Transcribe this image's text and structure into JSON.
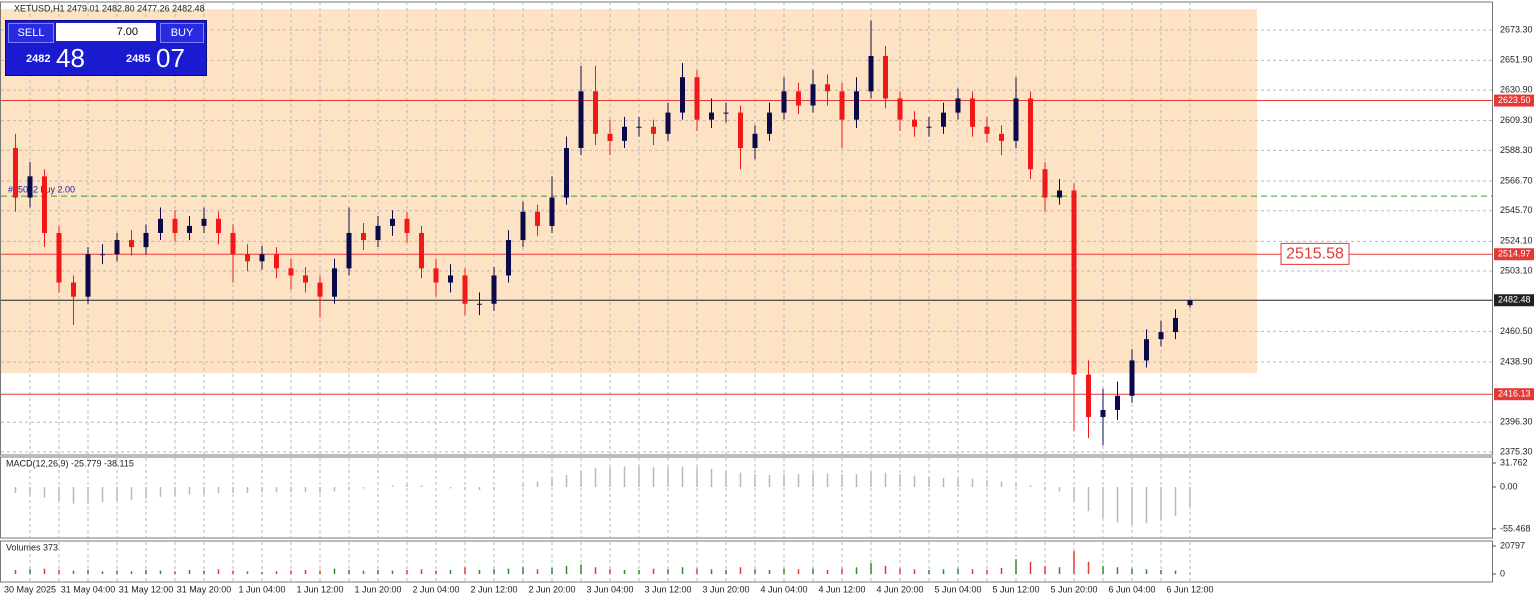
{
  "trade_panel": {
    "sell": "SELL",
    "buy": "BUY",
    "lots": "7.00",
    "bid_big": "2482",
    "bid_small": "48",
    "ask_big": "2485",
    "ask_small": "07"
  },
  "chart_data": [
    {
      "type": "candlestick",
      "title": "XETUSD,H1  2479.01 2482.80 2477.26 2482.48",
      "categories": [
        null,
        "30 May 2025",
        null,
        null,
        null,
        "31 May 04:00",
        null,
        null,
        null,
        "31 May 12:00",
        null,
        null,
        null,
        "31 May 20:00",
        null,
        null,
        null,
        "1 Jun 04:00",
        null,
        null,
        null,
        "1 Jun 12:00",
        null,
        null,
        null,
        "1 Jun 20:00",
        null,
        null,
        null,
        "2 Jun 04:00",
        null,
        null,
        null,
        "2 Jun 12:00",
        null,
        null,
        null,
        "2 Jun 20:00",
        null,
        null,
        null,
        "3 Jun 04:00",
        null,
        null,
        null,
        "3 Jun 12:00",
        null,
        null,
        null,
        "3 Jun 20:00",
        null,
        null,
        null,
        "4 Jun 04:00",
        null,
        null,
        null,
        "4 Jun 12:00",
        null,
        null,
        null,
        "4 Jun 20:00",
        null,
        null,
        null,
        "5 Jun 04:00",
        null,
        null,
        null,
        "5 Jun 12:00",
        null,
        null,
        null,
        "5 Jun 20:00",
        null,
        null,
        null,
        "6 Jun 04:00",
        null,
        null,
        null,
        "6 Jun 12:00"
      ],
      "open": [
        2590,
        2555,
        2570,
        2530,
        2495,
        2485,
        2515,
        2515,
        2525,
        2520,
        2530,
        2540,
        2530,
        2535,
        2540,
        2530,
        2515,
        2510,
        2515,
        2505,
        2500,
        2495,
        2485,
        2505,
        2530,
        2525,
        2535,
        2540,
        2530,
        2505,
        2495,
        2500,
        2480,
        2480,
        2500,
        2525,
        2545,
        2535,
        2555,
        2590,
        2630,
        2600,
        2595,
        2605,
        2605,
        2600,
        2615,
        2640,
        2610,
        2615,
        2615,
        2590,
        2600,
        2615,
        2630,
        2620,
        2635,
        2630,
        2610,
        2630,
        2655,
        2625,
        2610,
        2605,
        2605,
        2615,
        2625,
        2605,
        2600,
        2595,
        2625,
        2575,
        2555,
        2560,
        2430,
        2400,
        2405,
        2415,
        2440,
        2455,
        2460,
        2479.01
      ],
      "high": [
        2600,
        2580,
        2575,
        2535,
        2500,
        2520,
        2522,
        2530,
        2532,
        2536,
        2548,
        2546,
        2542,
        2548,
        2545,
        2536,
        2522,
        2521,
        2520,
        2512,
        2506,
        2500,
        2512,
        2548,
        2537,
        2542,
        2546,
        2545,
        2535,
        2512,
        2508,
        2505,
        2488,
        2506,
        2532,
        2552,
        2550,
        2570,
        2598,
        2648,
        2648,
        2610,
        2612,
        2612,
        2610,
        2622,
        2650,
        2645,
        2625,
        2622,
        2620,
        2606,
        2622,
        2640,
        2636,
        2645,
        2642,
        2636,
        2640,
        2680,
        2662,
        2630,
        2616,
        2612,
        2622,
        2632,
        2630,
        2612,
        2606,
        2640,
        2630,
        2580,
        2568,
        2565,
        2440,
        2420,
        2425,
        2448,
        2462,
        2468,
        2476,
        2482.8
      ],
      "low": [
        2545,
        2548,
        2520,
        2488,
        2465,
        2480,
        2508,
        2510,
        2514,
        2515,
        2525,
        2524,
        2525,
        2530,
        2522,
        2495,
        2503,
        2504,
        2498,
        2490,
        2488,
        2470,
        2480,
        2500,
        2518,
        2520,
        2528,
        2523,
        2498,
        2485,
        2488,
        2472,
        2472,
        2475,
        2495,
        2520,
        2528,
        2530,
        2550,
        2585,
        2592,
        2585,
        2590,
        2598,
        2592,
        2595,
        2610,
        2602,
        2604,
        2608,
        2575,
        2582,
        2595,
        2610,
        2614,
        2615,
        2620,
        2590,
        2604,
        2625,
        2618,
        2602,
        2598,
        2598,
        2600,
        2610,
        2598,
        2594,
        2585,
        2590,
        2568,
        2545,
        2550,
        2390,
        2385,
        2380,
        2398,
        2410,
        2435,
        2450,
        2455,
        2477.26
      ],
      "close": [
        2555,
        2570,
        2530,
        2495,
        2485,
        2515,
        2515,
        2525,
        2520,
        2530,
        2540,
        2530,
        2535,
        2540,
        2530,
        2515,
        2510,
        2515,
        2505,
        2500,
        2495,
        2485,
        2505,
        2530,
        2525,
        2535,
        2540,
        2530,
        2505,
        2495,
        2500,
        2480,
        2480,
        2500,
        2525,
        2545,
        2535,
        2555,
        2590,
        2630,
        2600,
        2595,
        2605,
        2605,
        2600,
        2615,
        2640,
        2610,
        2615,
        2615,
        2590,
        2600,
        2615,
        2630,
        2620,
        2635,
        2630,
        2610,
        2630,
        2655,
        2625,
        2610,
        2605,
        2605,
        2615,
        2625,
        2605,
        2600,
        2595,
        2625,
        2575,
        2555,
        2560,
        2430,
        2400,
        2405,
        2415,
        2440,
        2455,
        2460,
        2470,
        2482.48
      ],
      "up_color": "#0a0a4a",
      "down_color": "#f01818",
      "ylim": [
        2373.2,
        2693.1
      ],
      "yticks": [
        {
          "value": 2673.3,
          "label": "2673.30"
        },
        {
          "value": 2651.9,
          "label": "2651.90"
        },
        {
          "value": 2630.9,
          "label": "2630.90"
        },
        {
          "value": 2609.3,
          "label": "2609.30"
        },
        {
          "value": 2588.3,
          "label": "2588.30"
        },
        {
          "value": 2566.7,
          "label": "2566.70"
        },
        {
          "value": 2545.7,
          "label": "2545.70"
        },
        {
          "value": 2524.1,
          "label": "2524.10"
        },
        {
          "value": 2503.1,
          "label": "2503.10"
        },
        {
          "value": 2460.5,
          "label": "2460.50"
        },
        {
          "value": 2438.9,
          "label": "2438.90"
        },
        {
          "value": 2396.3,
          "label": "2396.30"
        },
        {
          "value": 2375.3,
          "label": "2375.30"
        }
      ],
      "grid": true,
      "zone": {
        "from": 2431,
        "to": 2688,
        "color": "#fde2c4"
      },
      "levels": [
        {
          "value": 2623.5,
          "label": "2623.50",
          "color": "#e53935"
        },
        {
          "value": 2514.97,
          "label": "2514.97",
          "color": "#e53935"
        },
        {
          "value": 2482.48,
          "label": "2482.48",
          "color": "#222222"
        },
        {
          "value": 2416.13,
          "label": "2416.13",
          "color": "#e53935"
        }
      ],
      "trade": {
        "value": 2556,
        "label": "#85072 buy 2.00",
        "color": "#3a9a3a"
      },
      "price_box": {
        "value": 2515.58,
        "label": "2515.58"
      }
    },
    {
      "type": "bar",
      "title": "MACD(12,26,9) -25.779 -38.115",
      "color": "#b8b8b8",
      "values": [
        -8,
        -10,
        -14,
        -18,
        -22,
        -22,
        -20,
        -18,
        -17,
        -15,
        -13,
        -12,
        -10,
        -9,
        -8,
        -8,
        -8,
        -7,
        -7,
        -7,
        -7,
        -8,
        -6,
        -3,
        -2,
        0,
        2,
        3,
        2,
        0,
        -2,
        -3,
        -4,
        -3,
        0,
        4,
        7,
        11,
        16,
        22,
        25,
        26,
        27,
        27,
        26,
        26,
        27,
        26,
        24,
        22,
        19,
        17,
        16,
        17,
        17,
        18,
        18,
        17,
        17,
        19,
        19,
        17,
        15,
        13,
        12,
        12,
        11,
        9,
        7,
        6,
        2,
        -3,
        -6,
        -20,
        -32,
        -41,
        -47,
        -50,
        -48,
        -44,
        -38,
        -25.779
      ],
      "ylim": [
        -67.5,
        39.7
      ],
      "yticks": [
        31.762,
        {
          "value": 0,
          "label": "0.00"
        },
        -55.468
      ]
    },
    {
      "type": "bar",
      "title": "Volumes 373",
      "up_color": "#2e8b2e",
      "down_color": "#e53935",
      "values": [
        3000,
        3500,
        4000,
        3000,
        2500,
        3000,
        2000,
        2500,
        2000,
        3000,
        2500,
        2000,
        3000,
        2500,
        3500,
        2500,
        2000,
        1500,
        2000,
        2500,
        3000,
        2500,
        4000,
        3000,
        2500,
        3000,
        2500,
        3000,
        3500,
        2500,
        3000,
        5000,
        3000,
        3500,
        4000,
        5000,
        3500,
        4500,
        6000,
        7000,
        5000,
        3500,
        3000,
        3000,
        4000,
        3500,
        5000,
        4000,
        3500,
        3000,
        5000,
        3500,
        3000,
        4000,
        3500,
        4000,
        3000,
        4000,
        5000,
        8000,
        6000,
        4000,
        3500,
        3000,
        3500,
        4000,
        3500,
        3000,
        4500,
        11000,
        9000,
        6000,
        5000,
        17000,
        9000,
        6000,
        5000,
        4000,
        3500,
        3000,
        2500,
        373
      ],
      "ylim": [
        -5942,
        24511
      ],
      "yticks": [
        20797,
        0
      ]
    }
  ]
}
